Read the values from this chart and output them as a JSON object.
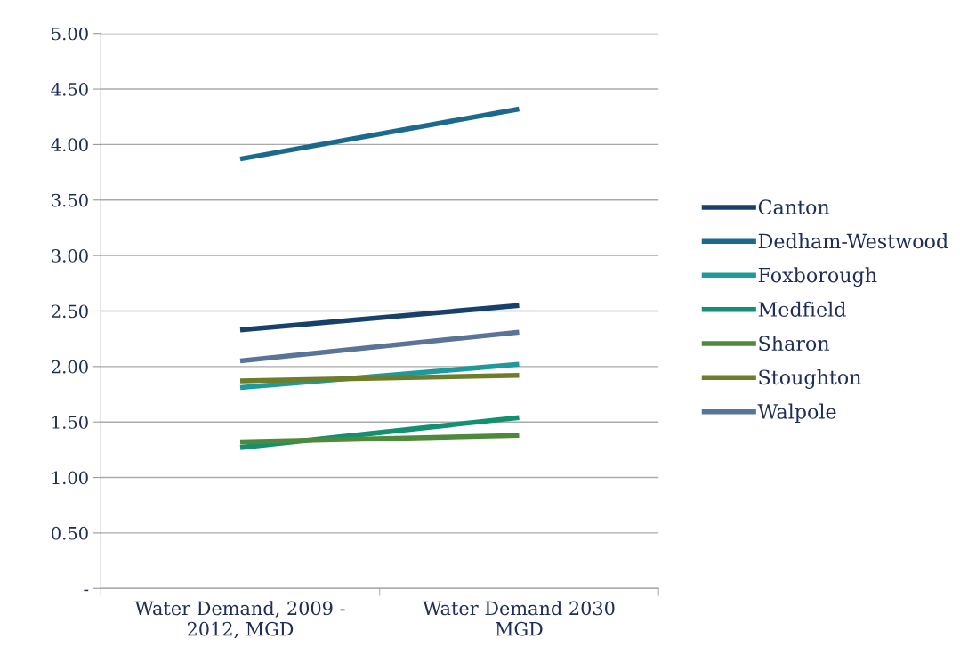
{
  "chart_data": {
    "type": "line",
    "categories": [
      "Water Demand, 2009 -\n2012, MGD",
      "Water Demand 2030\nMGD"
    ],
    "series": [
      {
        "name": "Canton",
        "color": "#17406d",
        "values": [
          2.33,
          2.55
        ]
      },
      {
        "name": "Dedham-Westwood",
        "color": "#1b6a8e",
        "values": [
          3.87,
          4.32
        ]
      },
      {
        "name": "Foxborough",
        "color": "#1f9a9c",
        "values": [
          1.81,
          2.02
        ]
      },
      {
        "name": "Medfield",
        "color": "#139072",
        "values": [
          1.27,
          1.54
        ]
      },
      {
        "name": "Sharon",
        "color": "#4f8a3c",
        "values": [
          1.32,
          1.38
        ]
      },
      {
        "name": "Stoughton",
        "color": "#6e7d2a",
        "values": [
          1.87,
          1.92
        ]
      },
      {
        "name": "Walpole",
        "color": "#5a7399",
        "values": [
          2.05,
          2.31
        ]
      }
    ],
    "ylim": [
      0,
      5
    ],
    "yticks": [
      {
        "value": 0,
        "label": "-"
      },
      {
        "value": 0.5,
        "label": "0.50"
      },
      {
        "value": 1,
        "label": "1.00"
      },
      {
        "value": 1.5,
        "label": "1.50"
      },
      {
        "value": 2,
        "label": "2.00"
      },
      {
        "value": 2.5,
        "label": "2.50"
      },
      {
        "value": 3,
        "label": "3.00"
      },
      {
        "value": 3.5,
        "label": "3.50"
      },
      {
        "value": 4,
        "label": "4.00"
      },
      {
        "value": 4.5,
        "label": "4.50"
      },
      {
        "value": 5,
        "label": "5.00"
      }
    ],
    "grid": "y",
    "legend": "right",
    "marker": "none",
    "line_style": "solid"
  }
}
